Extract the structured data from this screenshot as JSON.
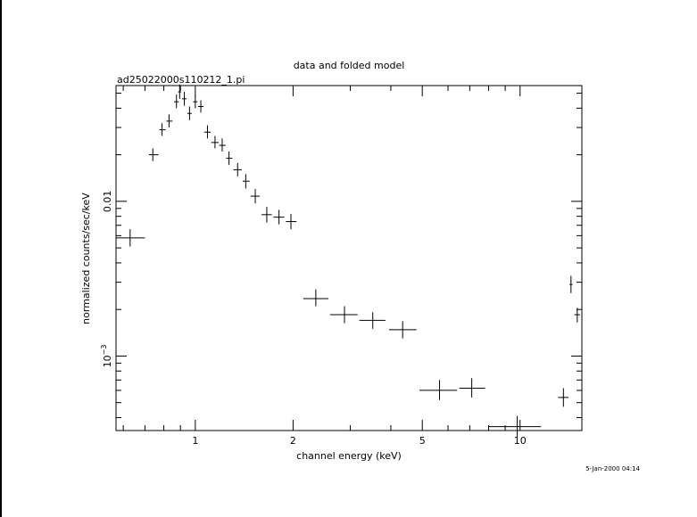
{
  "chart_data": {
    "type": "scatter",
    "title": "data and folded model",
    "subtitle": "ad25022000s110212_1.pi",
    "xlabel": "channel energy (keV)",
    "ylabel": "normalized counts/sec/keV",
    "x_scale": "log",
    "y_scale": "log",
    "xlim": [
      0.57,
      15.5
    ],
    "ylim": [
      0.00033,
      0.056
    ],
    "x_ticks": [
      {
        "value": 1,
        "label": "1"
      },
      {
        "value": 2,
        "label": "2"
      },
      {
        "value": 5,
        "label": "5"
      },
      {
        "value": 10,
        "label": "10"
      }
    ],
    "y_ticks": [
      {
        "value": 0.001,
        "label": "10",
        "sup": "−3"
      },
      {
        "value": 0.01,
        "label": "0.01"
      }
    ],
    "series": [
      {
        "style": "crosses-with-errorbars",
        "points": [
          {
            "x": 0.63,
            "xlo": 0.57,
            "xhi": 0.7,
            "y": 0.0058,
            "ylo": 0.0051,
            "yhi": 0.0066
          },
          {
            "x": 0.74,
            "xlo": 0.72,
            "xhi": 0.77,
            "y": 0.02,
            "ylo": 0.0182,
            "yhi": 0.022
          },
          {
            "x": 0.79,
            "xlo": 0.775,
            "xhi": 0.81,
            "y": 0.029,
            "ylo": 0.0265,
            "yhi": 0.032
          },
          {
            "x": 0.83,
            "xlo": 0.815,
            "xhi": 0.85,
            "y": 0.033,
            "ylo": 0.03,
            "yhi": 0.0365
          },
          {
            "x": 0.875,
            "xlo": 0.86,
            "xhi": 0.89,
            "y": 0.044,
            "ylo": 0.04,
            "yhi": 0.049
          },
          {
            "x": 0.895,
            "xlo": 0.885,
            "xhi": 0.905,
            "y": 0.051,
            "ylo": 0.046,
            "yhi": 0.057
          },
          {
            "x": 0.925,
            "xlo": 0.91,
            "xhi": 0.94,
            "y": 0.046,
            "ylo": 0.0415,
            "yhi": 0.051
          },
          {
            "x": 0.96,
            "xlo": 0.945,
            "xhi": 0.975,
            "y": 0.037,
            "ylo": 0.0335,
            "yhi": 0.041
          },
          {
            "x": 1.0,
            "xlo": 0.985,
            "xhi": 1.015,
            "y": 0.044,
            "ylo": 0.04,
            "yhi": 0.0485
          },
          {
            "x": 1.04,
            "xlo": 1.02,
            "xhi": 1.06,
            "y": 0.041,
            "ylo": 0.0375,
            "yhi": 0.045
          },
          {
            "x": 1.09,
            "xlo": 1.065,
            "xhi": 1.115,
            "y": 0.028,
            "ylo": 0.0255,
            "yhi": 0.031
          },
          {
            "x": 1.15,
            "xlo": 1.12,
            "xhi": 1.18,
            "y": 0.024,
            "ylo": 0.022,
            "yhi": 0.0265
          },
          {
            "x": 1.21,
            "xlo": 1.185,
            "xhi": 1.24,
            "y": 0.023,
            "ylo": 0.021,
            "yhi": 0.0255
          },
          {
            "x": 1.27,
            "xlo": 1.245,
            "xhi": 1.3,
            "y": 0.019,
            "ylo": 0.0172,
            "yhi": 0.021
          },
          {
            "x": 1.35,
            "xlo": 1.31,
            "xhi": 1.39,
            "y": 0.016,
            "ylo": 0.0145,
            "yhi": 0.0177
          },
          {
            "x": 1.43,
            "xlo": 1.4,
            "xhi": 1.47,
            "y": 0.0135,
            "ylo": 0.0121,
            "yhi": 0.015
          },
          {
            "x": 1.53,
            "xlo": 1.48,
            "xhi": 1.58,
            "y": 0.0108,
            "ylo": 0.0097,
            "yhi": 0.012
          },
          {
            "x": 1.66,
            "xlo": 1.6,
            "xhi": 1.72,
            "y": 0.0082,
            "ylo": 0.0073,
            "yhi": 0.0092
          },
          {
            "x": 1.81,
            "xlo": 1.74,
            "xhi": 1.88,
            "y": 0.0079,
            "ylo": 0.0071,
            "yhi": 0.0088
          },
          {
            "x": 1.97,
            "xlo": 1.9,
            "xhi": 2.05,
            "y": 0.0074,
            "ylo": 0.0066,
            "yhi": 0.0083
          },
          {
            "x": 2.35,
            "xlo": 2.15,
            "xhi": 2.57,
            "y": 0.00235,
            "ylo": 0.0021,
            "yhi": 0.0027
          },
          {
            "x": 2.88,
            "xlo": 2.6,
            "xhi": 3.16,
            "y": 0.00185,
            "ylo": 0.00163,
            "yhi": 0.0021
          },
          {
            "x": 3.52,
            "xlo": 3.2,
            "xhi": 3.85,
            "y": 0.0017,
            "ylo": 0.0015,
            "yhi": 0.00192
          },
          {
            "x": 4.35,
            "xlo": 3.95,
            "xhi": 4.8,
            "y": 0.00148,
            "ylo": 0.0013,
            "yhi": 0.00168
          },
          {
            "x": 5.65,
            "xlo": 4.9,
            "xhi": 6.4,
            "y": 0.0006,
            "ylo": 0.00052,
            "yhi": 0.0007
          },
          {
            "x": 7.1,
            "xlo": 6.5,
            "xhi": 7.8,
            "y": 0.00062,
            "ylo": 0.00054,
            "yhi": 0.00072
          },
          {
            "x": 9.8,
            "xlo": 8.0,
            "xhi": 11.6,
            "y": 0.00035,
            "ylo": 0.0003,
            "yhi": 0.00041
          },
          {
            "x": 13.6,
            "xlo": 13.1,
            "xhi": 14.1,
            "y": 0.00054,
            "ylo": 0.00047,
            "yhi": 0.00062
          },
          {
            "x": 14.35,
            "xlo": 14.2,
            "xhi": 14.5,
            "y": 0.0029,
            "ylo": 0.00255,
            "yhi": 0.0033
          },
          {
            "x": 15.0,
            "xlo": 14.7,
            "xhi": 15.3,
            "y": 0.00185,
            "ylo": 0.00165,
            "yhi": 0.00205
          }
        ]
      }
    ],
    "grid": false,
    "legend": "none"
  },
  "footer": {
    "timestamp": "5-Jan-2000 04:14"
  }
}
